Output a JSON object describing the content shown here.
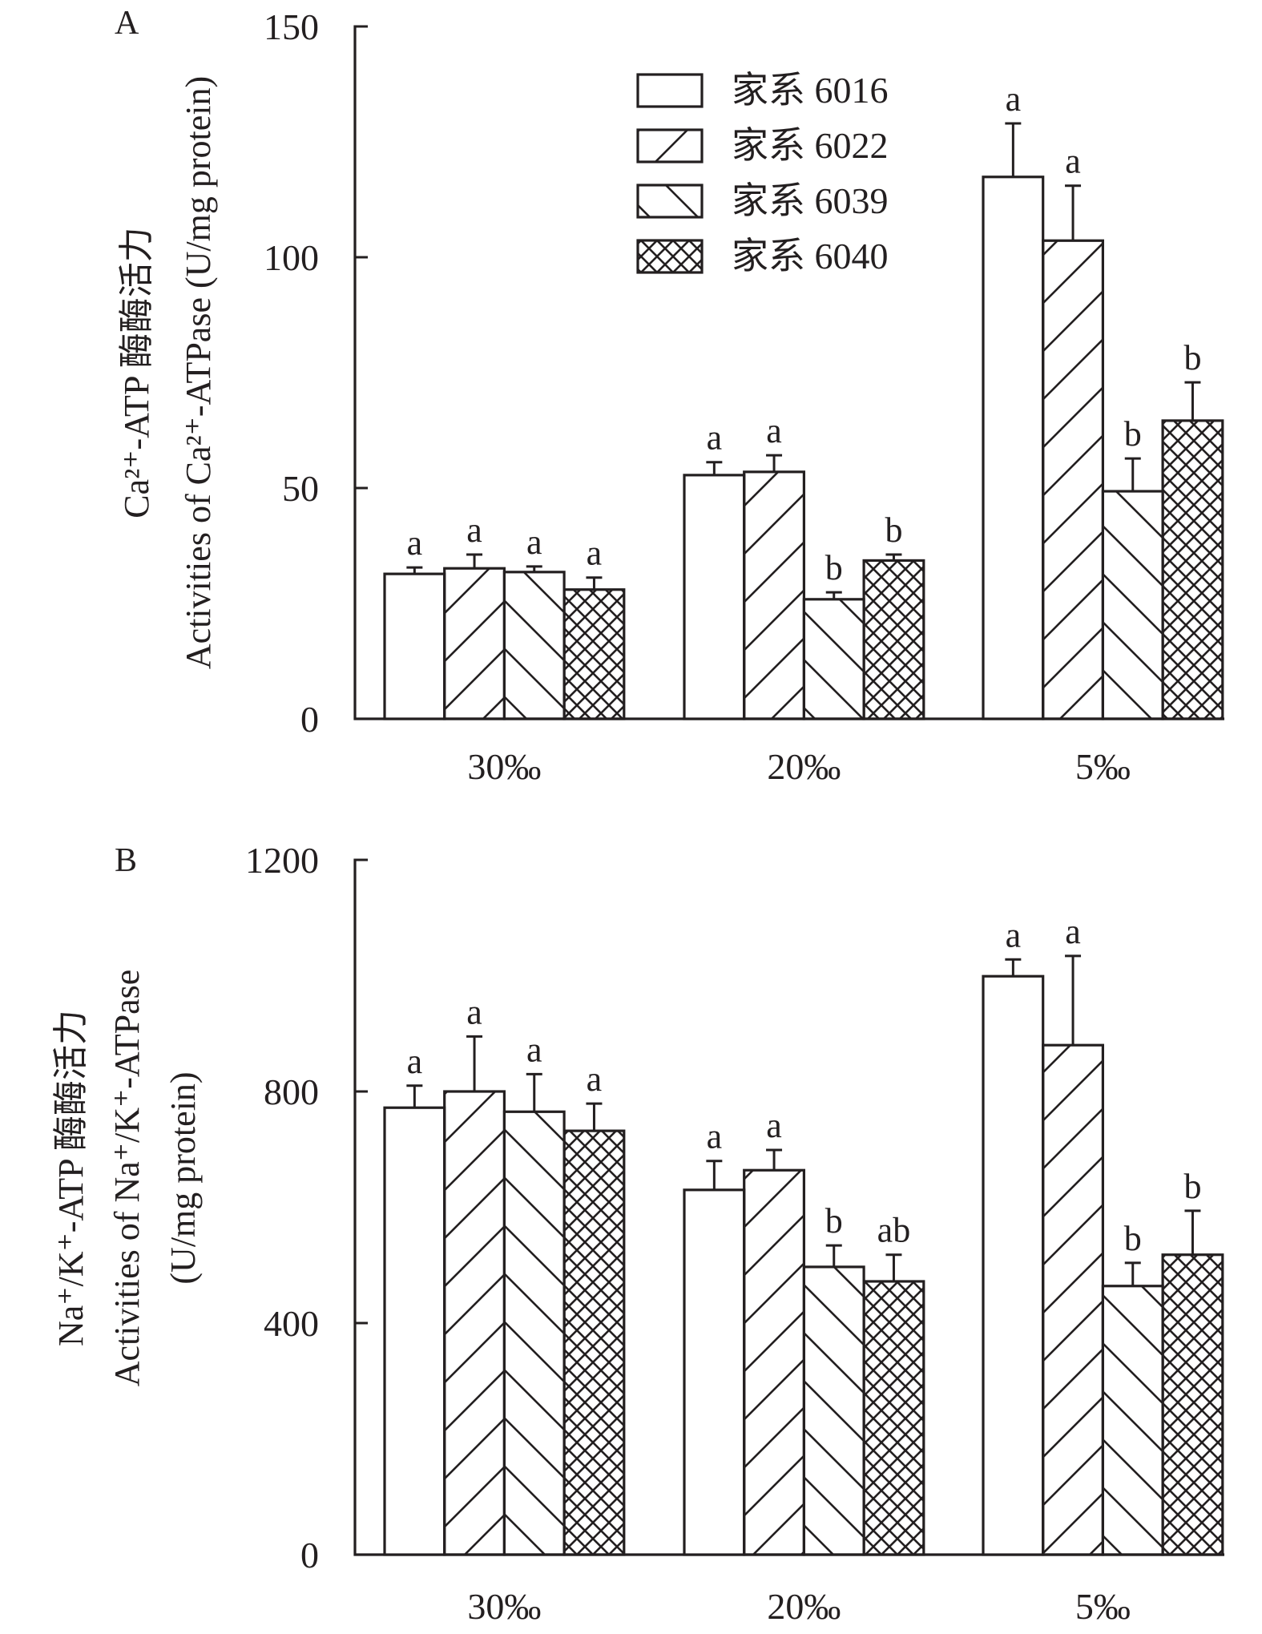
{
  "chart_data": [
    {
      "panel": "A",
      "type": "bar",
      "title": "",
      "ylabel_lines": [
        "Ca²⁺-ATP 酶酶活力",
        "Activities of Ca²⁺-ATPase (U/mg protein)"
      ],
      "xlabel": "",
      "categories": [
        "30‰",
        "20‰",
        "5‰"
      ],
      "ylim": [
        0,
        150
      ],
      "yticks": [
        0,
        50,
        100,
        150
      ],
      "ytick_labels": [
        "0",
        "50",
        "100",
        "150"
      ],
      "grid": false,
      "legend_position": "top-center",
      "series": [
        {
          "name": "家系 6016",
          "pattern": "empty",
          "values": [
            31.4,
            52.8,
            117.4
          ],
          "error": [
            1.4,
            2.8,
            11.6
          ],
          "sig": [
            "a",
            "a",
            "a"
          ]
        },
        {
          "name": "家系 6022",
          "pattern": "forward-hatch",
          "values": [
            32.6,
            53.5,
            103.6
          ],
          "error": [
            3.0,
            3.6,
            11.9
          ],
          "sig": [
            "a",
            "a",
            "a"
          ]
        },
        {
          "name": "家系 6039",
          "pattern": "back-hatch",
          "values": [
            31.8,
            25.9,
            49.3
          ],
          "error": [
            1.2,
            1.5,
            7.1
          ],
          "sig": [
            "a",
            "b",
            "b"
          ]
        },
        {
          "name": "家系 6040",
          "pattern": "crosshatch",
          "values": [
            28.0,
            34.3,
            64.6
          ],
          "error": [
            2.6,
            1.3,
            8.3
          ],
          "sig": [
            "a",
            "b",
            "b"
          ]
        }
      ]
    },
    {
      "panel": "B",
      "type": "bar",
      "title": "",
      "ylabel_lines": [
        "Na⁺/K⁺-ATP 酶酶活力",
        "Activities of Na⁺/K⁺-ATPase",
        "(U/mg protein)"
      ],
      "xlabel": "",
      "categories": [
        "30‰",
        "20‰",
        "5‰"
      ],
      "ylim": [
        0,
        1200
      ],
      "yticks": [
        0,
        400,
        800,
        1200
      ],
      "ytick_labels": [
        "0",
        "400",
        "800",
        "1200"
      ],
      "grid": false,
      "legend_position": "none",
      "series": [
        {
          "name": "家系 6016",
          "pattern": "empty",
          "values": [
            772,
            630,
            999
          ],
          "error": [
            38,
            50,
            29
          ],
          "sig": [
            "a",
            "a",
            "a"
          ]
        },
        {
          "name": "家系 6022",
          "pattern": "forward-hatch",
          "values": [
            800,
            664,
            880
          ],
          "error": [
            95,
            35,
            154
          ],
          "sig": [
            "a",
            "a",
            "a"
          ]
        },
        {
          "name": "家系 6039",
          "pattern": "back-hatch",
          "values": [
            765,
            497,
            464
          ],
          "error": [
            65,
            37,
            40
          ],
          "sig": [
            "a",
            "b",
            "b"
          ]
        },
        {
          "name": "家系 6040",
          "pattern": "crosshatch",
          "values": [
            732,
            472,
            518
          ],
          "error": [
            47,
            46,
            76
          ],
          "sig": [
            "a",
            "ab",
            "b"
          ]
        }
      ]
    }
  ],
  "legend": {
    "items": [
      "家系 6016",
      "家系 6022",
      "家系 6039",
      "家系 6040"
    ]
  },
  "colors": {
    "ink": "#231f20",
    "background": "#ffffff"
  }
}
